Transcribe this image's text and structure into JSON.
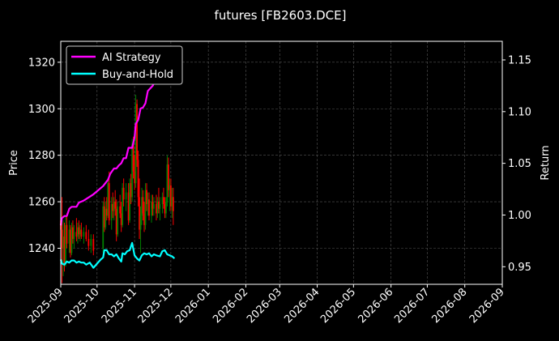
{
  "chart_data": {
    "title": "futures [FB2603.DCE]",
    "type": "line",
    "ylabel_left": "Price",
    "ylabel_right": "Return",
    "x_axis": {
      "type": "date",
      "range": [
        "2025-09-01",
        "2026-09-01"
      ],
      "ticks": [
        "2025-09",
        "2025-10",
        "2025-11",
        "2025-12",
        "2026-01",
        "2026-02",
        "2026-03",
        "2026-04",
        "2026-05",
        "2026-06",
        "2026-07",
        "2026-08",
        "2026-09"
      ]
    },
    "left_axis": {
      "range": [
        1224.5,
        1329
      ],
      "ticks": [
        1240,
        1260,
        1280,
        1300,
        1320
      ]
    },
    "right_axis": {
      "range": [
        0.933,
        1.168
      ],
      "ticks": [
        0.95,
        1.0,
        1.05,
        1.1,
        1.15
      ]
    },
    "grid": true,
    "legend": "top-left",
    "colors": {
      "background": "#000000",
      "ai_strategy": "#ff00ff",
      "buy_and_hold": "#00ffff",
      "candle_up": "#008000",
      "candle_down": "#ff0000",
      "grid": "#555555"
    },
    "series": [
      {
        "name": "AI Strategy",
        "axis": "right",
        "points": [
          [
            "2025-09-01",
            0.99
          ],
          [
            "2025-09-02",
            0.997
          ],
          [
            "2025-09-04",
            0.999
          ],
          [
            "2025-09-06",
            0.999
          ],
          [
            "2025-09-08",
            1.006
          ],
          [
            "2025-09-10",
            1.008
          ],
          [
            "2025-09-14",
            1.008
          ],
          [
            "2025-09-16",
            1.012
          ],
          [
            "2025-09-20",
            1.014
          ],
          [
            "2025-09-24",
            1.017
          ],
          [
            "2025-09-28",
            1.02
          ],
          [
            "2025-10-02",
            1.024
          ],
          [
            "2025-10-06",
            1.028
          ],
          [
            "2025-10-10",
            1.034
          ],
          [
            "2025-10-12",
            1.04
          ],
          [
            "2025-10-15",
            1.045
          ],
          [
            "2025-10-17",
            1.045
          ],
          [
            "2025-10-19",
            1.048
          ],
          [
            "2025-10-21",
            1.05
          ],
          [
            "2025-10-23",
            1.055
          ],
          [
            "2025-10-25",
            1.055
          ],
          [
            "2025-10-27",
            1.065
          ],
          [
            "2025-10-30",
            1.065
          ],
          [
            "2025-11-01",
            1.075
          ],
          [
            "2025-11-02",
            1.088
          ],
          [
            "2025-11-04",
            1.092
          ],
          [
            "2025-11-06",
            1.103
          ],
          [
            "2025-11-08",
            1.104
          ],
          [
            "2025-11-10",
            1.108
          ],
          [
            "2025-11-12",
            1.12
          ],
          [
            "2025-11-16",
            1.125
          ],
          [
            "2025-11-20",
            1.135
          ],
          [
            "2025-11-26",
            1.14
          ],
          [
            "2025-11-30",
            1.148
          ],
          [
            "2025-12-03",
            1.158
          ],
          [
            "2025-12-06",
            1.16
          ]
        ]
      },
      {
        "name": "Buy-and-Hold",
        "axis": "right",
        "points": [
          [
            "2025-09-01",
            0.957
          ],
          [
            "2025-09-02",
            0.953
          ],
          [
            "2025-09-04",
            0.952
          ],
          [
            "2025-09-06",
            0.955
          ],
          [
            "2025-09-08",
            0.954
          ],
          [
            "2025-09-10",
            0.956
          ],
          [
            "2025-09-12",
            0.956
          ],
          [
            "2025-09-14",
            0.954
          ],
          [
            "2025-09-16",
            0.955
          ],
          [
            "2025-09-18",
            0.954
          ],
          [
            "2025-09-20",
            0.954
          ],
          [
            "2025-09-22",
            0.952
          ],
          [
            "2025-09-25",
            0.954
          ],
          [
            "2025-09-28",
            0.949
          ],
          [
            "2025-10-01",
            0.953
          ],
          [
            "2025-10-04",
            0.957
          ],
          [
            "2025-10-06",
            0.959
          ],
          [
            "2025-10-07",
            0.966
          ],
          [
            "2025-10-09",
            0.966
          ],
          [
            "2025-10-11",
            0.962
          ],
          [
            "2025-10-13",
            0.962
          ],
          [
            "2025-10-15",
            0.96
          ],
          [
            "2025-10-17",
            0.962
          ],
          [
            "2025-10-19",
            0.958
          ],
          [
            "2025-10-21",
            0.955
          ],
          [
            "2025-10-22",
            0.963
          ],
          [
            "2025-10-24",
            0.962
          ],
          [
            "2025-10-26",
            0.965
          ],
          [
            "2025-10-28",
            0.966
          ],
          [
            "2025-10-30",
            0.973
          ],
          [
            "2025-11-01",
            0.961
          ],
          [
            "2025-11-03",
            0.958
          ],
          [
            "2025-11-05",
            0.956
          ],
          [
            "2025-11-07",
            0.961
          ],
          [
            "2025-11-09",
            0.963
          ],
          [
            "2025-11-11",
            0.962
          ],
          [
            "2025-11-13",
            0.963
          ],
          [
            "2025-11-15",
            0.96
          ],
          [
            "2025-11-17",
            0.962
          ],
          [
            "2025-11-19",
            0.961
          ],
          [
            "2025-11-22",
            0.96
          ],
          [
            "2025-11-24",
            0.965
          ],
          [
            "2025-11-26",
            0.966
          ],
          [
            "2025-11-28",
            0.962
          ],
          [
            "2025-11-30",
            0.961
          ],
          [
            "2025-12-02",
            0.96
          ],
          [
            "2025-12-04",
            0.958
          ]
        ]
      },
      {
        "name": "Price",
        "axis": "left",
        "type": "ohlc",
        "bars": [
          [
            "2025-09-01",
            1252,
            1264,
            1241,
            1248
          ],
          [
            "2025-09-02",
            1248,
            1262,
            1225,
            1240
          ],
          [
            "2025-09-03",
            1240,
            1252,
            1228,
            1245
          ],
          [
            "2025-09-04",
            1245,
            1251,
            1230,
            1233
          ],
          [
            "2025-09-05",
            1233,
            1254,
            1232,
            1250
          ],
          [
            "2025-09-06",
            1250,
            1255,
            1240,
            1242
          ],
          [
            "2025-09-08",
            1242,
            1252,
            1238,
            1248
          ],
          [
            "2025-09-09",
            1248,
            1250,
            1236,
            1238
          ],
          [
            "2025-09-10",
            1238,
            1251,
            1237,
            1249
          ],
          [
            "2025-09-11",
            1249,
            1252,
            1242,
            1244
          ],
          [
            "2025-09-12",
            1244,
            1250,
            1240,
            1247
          ],
          [
            "2025-09-14",
            1247,
            1253,
            1243,
            1245
          ],
          [
            "2025-09-15",
            1245,
            1251,
            1242,
            1249
          ],
          [
            "2025-09-16",
            1249,
            1252,
            1244,
            1246
          ],
          [
            "2025-09-17",
            1246,
            1250,
            1243,
            1248
          ],
          [
            "2025-09-18",
            1248,
            1251,
            1244,
            1245
          ],
          [
            "2025-09-20",
            1245,
            1249,
            1242,
            1247
          ],
          [
            "2025-09-22",
            1247,
            1250,
            1243,
            1244
          ],
          [
            "2025-09-24",
            1244,
            1248,
            1239,
            1241
          ],
          [
            "2025-09-26",
            1241,
            1246,
            1238,
            1244
          ],
          [
            "2025-09-28",
            1244,
            1246,
            1237,
            1239
          ],
          [
            "2025-10-06",
            1240,
            1260,
            1238,
            1258
          ],
          [
            "2025-10-07",
            1258,
            1262,
            1247,
            1249
          ],
          [
            "2025-10-08",
            1249,
            1260,
            1248,
            1257
          ],
          [
            "2025-10-09",
            1257,
            1262,
            1252,
            1254
          ],
          [
            "2025-10-10",
            1254,
            1270,
            1253,
            1268
          ],
          [
            "2025-10-11",
            1268,
            1273,
            1250,
            1252
          ],
          [
            "2025-10-13",
            1252,
            1262,
            1248,
            1259
          ],
          [
            "2025-10-14",
            1259,
            1264,
            1253,
            1256
          ],
          [
            "2025-10-15",
            1256,
            1262,
            1252,
            1260
          ],
          [
            "2025-10-16",
            1260,
            1265,
            1254,
            1257
          ],
          [
            "2025-10-17",
            1257,
            1261,
            1243,
            1246
          ],
          [
            "2025-10-18",
            1246,
            1260,
            1245,
            1258
          ],
          [
            "2025-10-20",
            1258,
            1263,
            1253,
            1255
          ],
          [
            "2025-10-21",
            1255,
            1260,
            1247,
            1250
          ],
          [
            "2025-10-22",
            1250,
            1268,
            1249,
            1266
          ],
          [
            "2025-10-23",
            1266,
            1270,
            1258,
            1261
          ],
          [
            "2025-10-25",
            1261,
            1268,
            1256,
            1264
          ],
          [
            "2025-10-27",
            1264,
            1268,
            1250,
            1252
          ],
          [
            "2025-10-28",
            1252,
            1270,
            1251,
            1268
          ],
          [
            "2025-10-29",
            1268,
            1272,
            1259,
            1262
          ],
          [
            "2025-10-30",
            1262,
            1287,
            1260,
            1285
          ],
          [
            "2025-10-31",
            1285,
            1288,
            1270,
            1273
          ],
          [
            "2025-11-01",
            1273,
            1280,
            1265,
            1268
          ],
          [
            "2025-11-02",
            1268,
            1306,
            1266,
            1302
          ],
          [
            "2025-11-03",
            1302,
            1304,
            1275,
            1278
          ],
          [
            "2025-11-04",
            1278,
            1282,
            1258,
            1262
          ],
          [
            "2025-11-05",
            1262,
            1270,
            1244,
            1248
          ],
          [
            "2025-11-06",
            1248,
            1258,
            1238,
            1254
          ],
          [
            "2025-11-07",
            1254,
            1266,
            1250,
            1262
          ],
          [
            "2025-11-08",
            1262,
            1265,
            1252,
            1255
          ],
          [
            "2025-11-09",
            1255,
            1260,
            1247,
            1250
          ],
          [
            "2025-11-10",
            1250,
            1268,
            1248,
            1265
          ],
          [
            "2025-11-11",
            1265,
            1268,
            1256,
            1259
          ],
          [
            "2025-11-12",
            1259,
            1264,
            1254,
            1261
          ],
          [
            "2025-11-13",
            1261,
            1264,
            1252,
            1254
          ],
          [
            "2025-11-15",
            1254,
            1263,
            1251,
            1260
          ],
          [
            "2025-11-16",
            1260,
            1263,
            1254,
            1257
          ],
          [
            "2025-11-17",
            1257,
            1262,
            1254,
            1259
          ],
          [
            "2025-11-19",
            1259,
            1263,
            1252,
            1255
          ],
          [
            "2025-11-20",
            1255,
            1262,
            1253,
            1260
          ],
          [
            "2025-11-21",
            1260,
            1266,
            1255,
            1257
          ],
          [
            "2025-11-22",
            1257,
            1262,
            1252,
            1259
          ],
          [
            "2025-11-24",
            1259,
            1264,
            1255,
            1262
          ],
          [
            "2025-11-25",
            1262,
            1266,
            1257,
            1259
          ],
          [
            "2025-11-26",
            1259,
            1262,
            1253,
            1255
          ],
          [
            "2025-11-27",
            1255,
            1262,
            1253,
            1260
          ],
          [
            "2025-11-28",
            1260,
            1280,
            1258,
            1276
          ],
          [
            "2025-11-29",
            1276,
            1279,
            1262,
            1265
          ],
          [
            "2025-11-30",
            1265,
            1270,
            1256,
            1267
          ],
          [
            "2025-12-01",
            1267,
            1270,
            1256,
            1258
          ],
          [
            "2025-12-02",
            1258,
            1266,
            1253,
            1262
          ],
          [
            "2025-12-03",
            1262,
            1266,
            1250,
            1256
          ]
        ]
      }
    ]
  }
}
